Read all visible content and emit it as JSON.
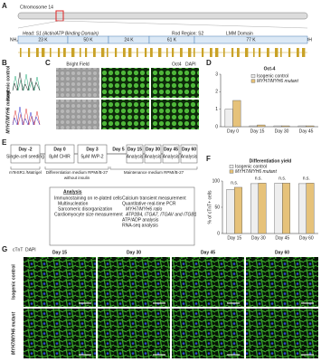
{
  "figure": {
    "panel_labels": [
      "A",
      "B",
      "C",
      "D",
      "E",
      "F",
      "G"
    ],
    "a": {
      "chromosome": "Chromosome 14",
      "nh2": "NH₂",
      "cooh": "COOH",
      "regions": [
        "Head: S1 (Actin/ATP Binding Domain)",
        "Rod Region: S2",
        "LMM Domain"
      ],
      "fragments": [
        "23 K",
        "50 K",
        "24 K",
        "61 K",
        "77 K"
      ]
    },
    "b": {
      "rows": [
        "Isogenic control",
        "MYH7/MYH6 mutant"
      ]
    },
    "c": {
      "columns": [
        "Bright Field",
        "Oct4",
        "DAPI"
      ]
    },
    "e": {
      "days": [
        "Day -2",
        "Day 0",
        "Day 3",
        "Day 5",
        "Day 15",
        "Day 30",
        "Day 45",
        "Day 60"
      ],
      "day_notes": [
        "Single-cell seeding",
        "8μM CHIR",
        "5μM IWP-2",
        "Analysis",
        "Analysis",
        "Analysis",
        "Analysis"
      ],
      "media": [
        "mTeSR1 /Matrigel",
        "Differentiation medium RPMI/B-27 without insulin",
        "Maintenance medium RPMI/B-27"
      ],
      "analysis_title": "Analysis",
      "analysis_items": [
        "Immunostaining on re-plated cells",
        "Multinucleation",
        "Sarcomeric disorganization",
        "Cardiomyocyte size measurement",
        "Calcium transient measurement",
        "Quantitative real-time PCR",
        "MYH7/MYH6 ratio",
        "ATP2B4, ITGA7, ITGAV and ITGB1",
        "ATP/ADP analysis",
        "RNA-seq analysis"
      ]
    },
    "g": {
      "stain": [
        "cTnT",
        "DAPI"
      ],
      "columns": [
        "Day 15",
        "Day 30",
        "Day 45",
        "Day 60"
      ],
      "rows": [
        "Isogenic control",
        "MYH7/MYH6 mutant"
      ]
    }
  },
  "chart_data": [
    {
      "type": "bar",
      "title": "Oct-4",
      "categories": [
        "Day 0",
        "Day 15",
        "Day 30",
        "Day 45"
      ],
      "series": [
        {
          "name": "Isogenic control",
          "color": "#eeeeee",
          "values": [
            1.0,
            0.05,
            0.05,
            0.05
          ]
        },
        {
          "name": "MYH7/MYH6 mutant",
          "color": "#e6c27a",
          "values": [
            1.5,
            0.1,
            0.05,
            0.05
          ]
        }
      ],
      "ylim": [
        0,
        3
      ],
      "yticks": [
        0,
        1,
        2,
        3
      ],
      "legend": "upper right"
    },
    {
      "type": "bar",
      "title": "Differentiation yield",
      "ylabel": "% of cTnT+ cells",
      "categories": [
        "Day 15",
        "Day 30",
        "Day 45",
        "Day 60"
      ],
      "series": [
        {
          "name": "Isogenic control",
          "color": "#eeeeee",
          "values": [
            84,
            95,
            96,
            95
          ]
        },
        {
          "name": "MYH7/MYH6 mutant",
          "color": "#e6c27a",
          "values": [
            88,
            96,
            96,
            96
          ]
        }
      ],
      "annotations": [
        "n.s.",
        "n.s.",
        "n.s.",
        "n.s."
      ],
      "ylim": [
        0,
        100
      ],
      "yticks": [
        0,
        50,
        100
      ],
      "legend": "above"
    }
  ]
}
